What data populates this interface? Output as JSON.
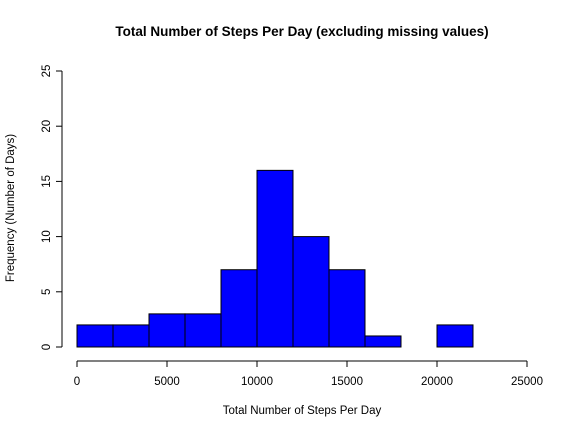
{
  "chart_data": {
    "type": "bar",
    "title": "Total Number of Steps Per Day (excluding missing values)",
    "xlabel": "Total Number of Steps Per Day",
    "ylabel": "Frequency (Number of Days)",
    "bins": [
      {
        "start": 0,
        "end": 2000,
        "count": 2
      },
      {
        "start": 2000,
        "end": 4000,
        "count": 2
      },
      {
        "start": 4000,
        "end": 6000,
        "count": 3
      },
      {
        "start": 6000,
        "end": 8000,
        "count": 3
      },
      {
        "start": 8000,
        "end": 10000,
        "count": 7
      },
      {
        "start": 10000,
        "end": 12000,
        "count": 16
      },
      {
        "start": 12000,
        "end": 14000,
        "count": 10
      },
      {
        "start": 14000,
        "end": 16000,
        "count": 7
      },
      {
        "start": 16000,
        "end": 18000,
        "count": 1
      },
      {
        "start": 18000,
        "end": 20000,
        "count": 0
      },
      {
        "start": 20000,
        "end": 22000,
        "count": 2
      }
    ],
    "xlim": [
      0,
      25000
    ],
    "ylim": [
      0,
      25
    ],
    "xticks": [
      0,
      5000,
      10000,
      15000,
      20000,
      25000
    ],
    "yticks": [
      0,
      5,
      10,
      15,
      20,
      25
    ],
    "bar_color": "#0000ff",
    "grid": false,
    "legend": "none"
  }
}
